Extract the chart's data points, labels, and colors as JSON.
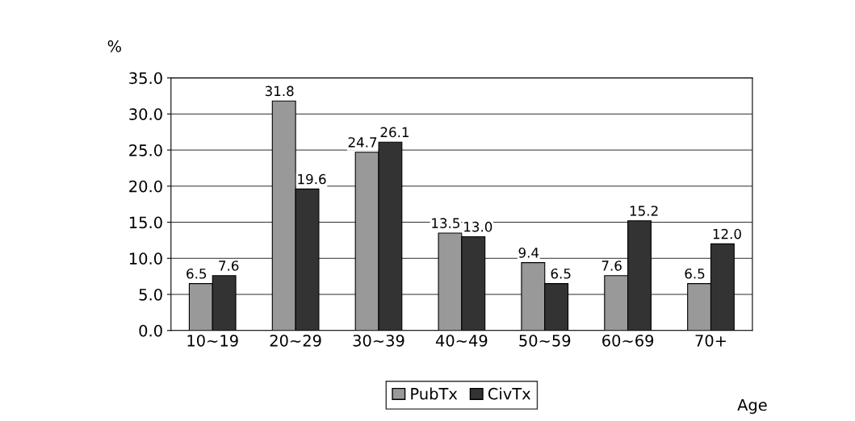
{
  "chart_data": {
    "type": "bar",
    "categories": [
      "10~19",
      "20~29",
      "30~39",
      "40~49",
      "50~59",
      "60~69",
      "70+"
    ],
    "series": [
      {
        "name": "PubTx",
        "color": "#999999",
        "values": [
          6.5,
          31.8,
          24.7,
          13.5,
          9.4,
          7.6,
          6.5
        ],
        "value_labels": [
          "6.5",
          "31.8",
          "24.7",
          "13.5",
          "9.4",
          "7.6",
          "6.5"
        ]
      },
      {
        "name": "CivTx",
        "color": "#333333",
        "values": [
          7.6,
          19.6,
          26.1,
          13.0,
          6.5,
          15.2,
          12.0
        ],
        "value_labels": [
          "7.6",
          "19.6",
          "26.1",
          "13.0",
          "6.5",
          "15.2",
          "12.0"
        ]
      }
    ],
    "ylabel": "%",
    "xlabel": "Age",
    "ylim": [
      0,
      35
    ],
    "yticks": [
      {
        "value": 0,
        "label": "0.0"
      },
      {
        "value": 5,
        "label": "5.0"
      },
      {
        "value": 10,
        "label": "10.0"
      },
      {
        "value": 15,
        "label": "15.0"
      },
      {
        "value": 20,
        "label": "20.0"
      },
      {
        "value": 25,
        "label": "25.0"
      },
      {
        "value": 30,
        "label": "30.0"
      },
      {
        "value": 35,
        "label": "35.0"
      }
    ],
    "grid": "y",
    "legend": "bottom"
  }
}
